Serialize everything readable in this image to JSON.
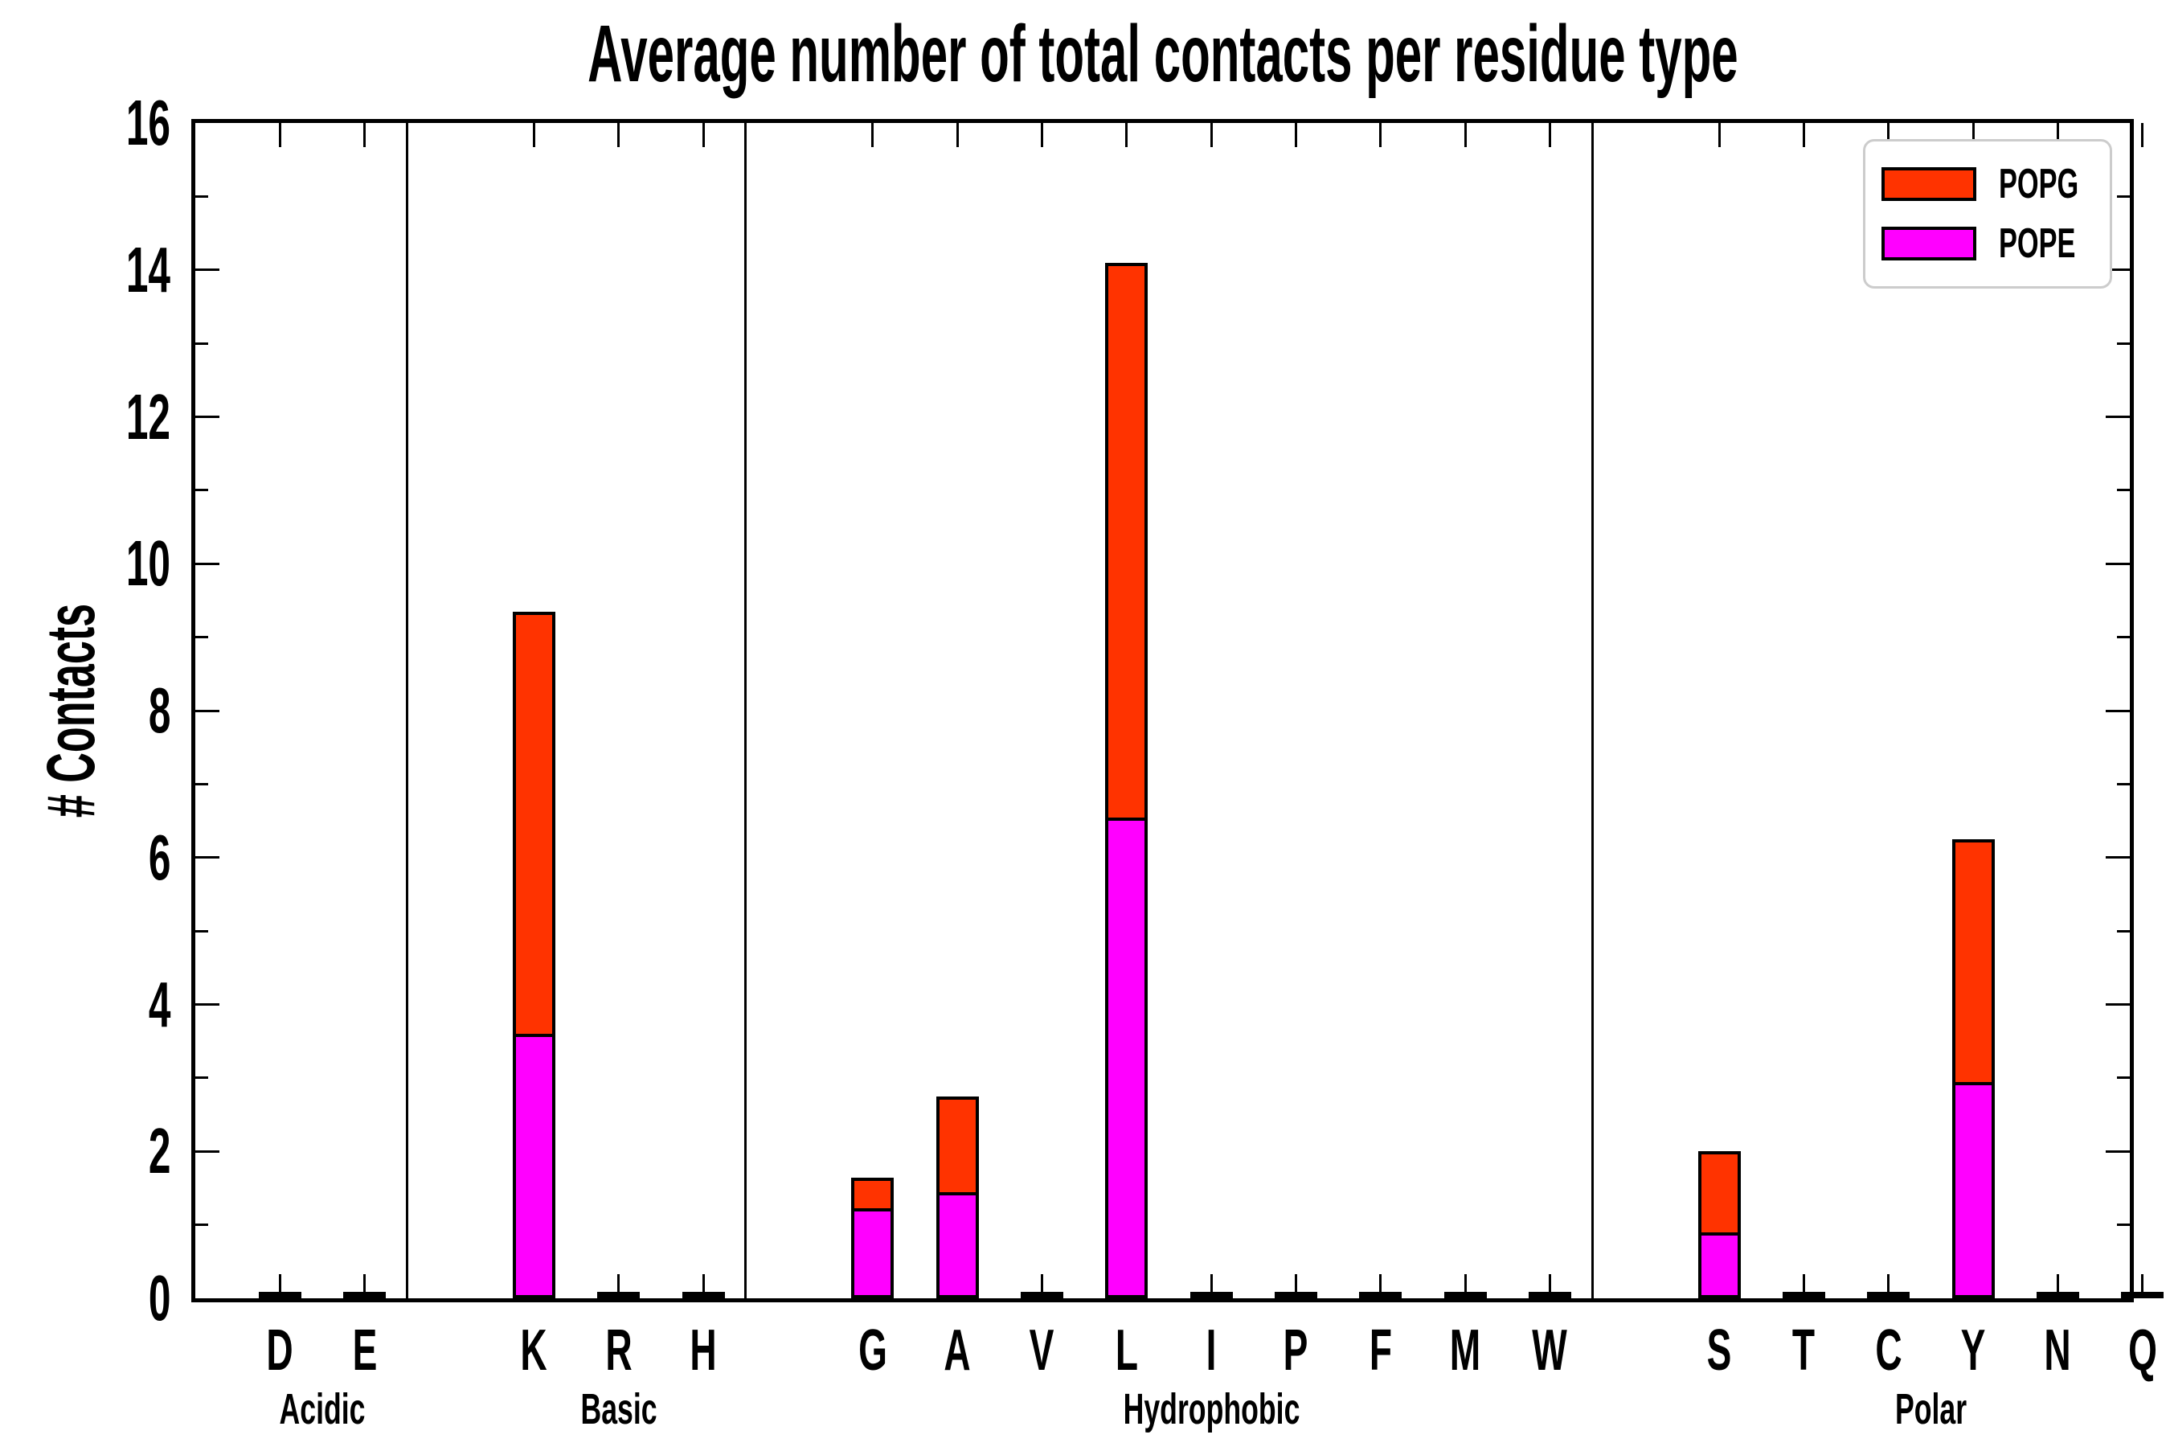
{
  "title": "Average number of total contacts per residue type",
  "ylabel": "# Contacts",
  "legend": {
    "items": [
      {
        "label": "POPG",
        "color": "#ff3300"
      },
      {
        "label": "POPE",
        "color": "#ff00ff"
      }
    ]
  },
  "colors": {
    "popg": "#ff3300",
    "pope": "#ff00ff",
    "axis": "#000000",
    "legend_border": "#cccccc"
  },
  "chart_data": {
    "type": "bar",
    "stacked": true,
    "title": "Average number of total contacts per residue type",
    "xlabel": "",
    "ylabel": "# Contacts",
    "ylim": [
      0,
      16
    ],
    "ytick_major_step": 2,
    "ytick_minor_step": 1,
    "ytick_labels": [
      "0",
      "2",
      "4",
      "6",
      "8",
      "10",
      "12",
      "14",
      "16"
    ],
    "grid": false,
    "legend_position": "upper right",
    "slot_range": [
      -0.5,
      22.35
    ],
    "separator_slots": [
      2,
      6,
      16
    ],
    "bar_width_fraction": 0.5,
    "groups": [
      {
        "label": "Acidic",
        "label_slot": 0.5
      },
      {
        "label": "Basic",
        "label_slot": 4
      },
      {
        "label": "Hydrophobic",
        "label_slot": 11
      },
      {
        "label": "Polar",
        "label_slot": 19.5
      }
    ],
    "series_order": [
      "POPE",
      "POPG"
    ],
    "series": [
      {
        "name": "POPE",
        "color": "#ff00ff"
      },
      {
        "name": "POPG",
        "color": "#ff3300"
      }
    ],
    "categories": [
      {
        "label": "D",
        "group": "Acidic",
        "slot": 0,
        "POPE": 0.02,
        "POPG": 0.02
      },
      {
        "label": "E",
        "group": "Acidic",
        "slot": 1,
        "POPE": 0.02,
        "POPG": 0.02
      },
      {
        "label": "K",
        "group": "Basic",
        "slot": 3,
        "POPE": 3.6,
        "POPG": 5.75
      },
      {
        "label": "R",
        "group": "Basic",
        "slot": 4,
        "POPE": 0.02,
        "POPG": 0.02
      },
      {
        "label": "H",
        "group": "Basic",
        "slot": 5,
        "POPE": 0.02,
        "POPG": 0.02
      },
      {
        "label": "G",
        "group": "Hydrophobic",
        "slot": 7,
        "POPE": 1.22,
        "POPG": 0.42
      },
      {
        "label": "A",
        "group": "Hydrophobic",
        "slot": 8,
        "POPE": 1.45,
        "POPG": 1.3
      },
      {
        "label": "V",
        "group": "Hydrophobic",
        "slot": 9,
        "POPE": 0.02,
        "POPG": 0.02
      },
      {
        "label": "L",
        "group": "Hydrophobic",
        "slot": 10,
        "POPE": 6.55,
        "POPG": 7.55
      },
      {
        "label": "I",
        "group": "Hydrophobic",
        "slot": 11,
        "POPE": 0.02,
        "POPG": 0.02
      },
      {
        "label": "P",
        "group": "Hydrophobic",
        "slot": 12,
        "POPE": 0.02,
        "POPG": 0.02
      },
      {
        "label": "F",
        "group": "Hydrophobic",
        "slot": 13,
        "POPE": 0.02,
        "POPG": 0.02
      },
      {
        "label": "M",
        "group": "Hydrophobic",
        "slot": 14,
        "POPE": 0.02,
        "POPG": 0.02
      },
      {
        "label": "W",
        "group": "Hydrophobic",
        "slot": 15,
        "POPE": 0.02,
        "POPG": 0.02
      },
      {
        "label": "S",
        "group": "Polar",
        "slot": 17,
        "POPE": 0.9,
        "POPG": 1.1
      },
      {
        "label": "T",
        "group": "Polar",
        "slot": 18,
        "POPE": 0.02,
        "POPG": 0.02
      },
      {
        "label": "C",
        "group": "Polar",
        "slot": 19,
        "POPE": 0.02,
        "POPG": 0.02
      },
      {
        "label": "Y",
        "group": "Polar",
        "slot": 20,
        "POPE": 2.95,
        "POPG": 3.3
      },
      {
        "label": "N",
        "group": "Polar",
        "slot": 21,
        "POPE": 0.02,
        "POPG": 0.02
      },
      {
        "label": "Q",
        "group": "Polar",
        "slot": 22,
        "POPE": 0.02,
        "POPG": 0.02
      }
    ]
  }
}
